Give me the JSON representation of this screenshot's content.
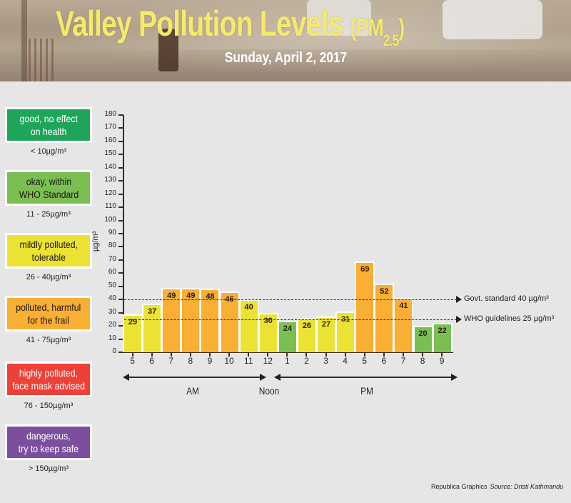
{
  "header": {
    "title": "Valley Pollution Levels",
    "title_pm": "(PM",
    "title_sub": "2.5",
    "title_close": ")",
    "date": "Sunday, April 2, 2017"
  },
  "legend": [
    {
      "label_line1": "good, no effect",
      "label_line2": "on health",
      "range": "< 10µg/m³",
      "color": "#1fa55a",
      "text_color": "#ffffff"
    },
    {
      "label_line1": "okay, within",
      "label_line2": "WHO Standard",
      "range": "11 - 25µg/m³",
      "color": "#7bbf52",
      "text_color": "#1e1a14"
    },
    {
      "label_line1": "mildly polluted,",
      "label_line2": "tolerable",
      "range": "26 - 40µg/m³",
      "color": "#ebe233",
      "text_color": "#1e1a14"
    },
    {
      "label_line1": "polluted, harmful",
      "label_line2": "for the frail",
      "range": "41 - 75µg/m³",
      "color": "#f9ae34",
      "text_color": "#1e1a14"
    },
    {
      "label_line1": "highly polluted,",
      "label_line2": "face mask advised",
      "range": "76 - 150µg/m³",
      "color": "#ef4037",
      "text_color": "#ffffff"
    },
    {
      "label_line1": "dangerous,",
      "label_line2": "try to keep safe",
      "range": "> 150µg/m³",
      "color": "#7b4f9e",
      "text_color": "#ffffff"
    }
  ],
  "reference_lines": [
    {
      "label": "Govt. standard",
      "value_label": "40 µg/m³",
      "value": 40
    },
    {
      "label": "WHO guidelines",
      "value_label": "25 µg/m³",
      "value": 25
    }
  ],
  "periods": {
    "am": "AM",
    "noon": "Noon",
    "pm": "PM"
  },
  "credit": {
    "graphics": "Republica Graphics",
    "source": "Source: Dristi Kathmandu"
  },
  "chart_data": {
    "type": "bar",
    "title": "Valley Pollution Levels (PM2.5)",
    "subtitle": "Sunday, April 2, 2017",
    "xlabel": "",
    "ylabel": "µg/m³",
    "ylim": [
      0,
      180
    ],
    "yticks": [
      0,
      10,
      20,
      30,
      40,
      50,
      60,
      70,
      80,
      90,
      100,
      110,
      120,
      130,
      140,
      150,
      160,
      170,
      180
    ],
    "categories": [
      "5",
      "6",
      "7",
      "8",
      "9",
      "10",
      "11",
      "12",
      "1",
      "2",
      "3",
      "4",
      "5",
      "6",
      "7",
      "8",
      "9"
    ],
    "period": [
      "AM",
      "AM",
      "AM",
      "AM",
      "AM",
      "AM",
      "AM",
      "Noon",
      "PM",
      "PM",
      "PM",
      "PM",
      "PM",
      "PM",
      "PM",
      "PM",
      "PM"
    ],
    "values": [
      29,
      37,
      49,
      49,
      48,
      46,
      40,
      30,
      24,
      26,
      27,
      31,
      69,
      52,
      41,
      20,
      22
    ],
    "bar_colors": [
      "#ebe233",
      "#ebe233",
      "#f9ae34",
      "#f9ae34",
      "#f9ae34",
      "#f9ae34",
      "#ebe233",
      "#ebe233",
      "#7bbf52",
      "#ebe233",
      "#ebe233",
      "#ebe233",
      "#f9ae34",
      "#f9ae34",
      "#f9ae34",
      "#7bbf52",
      "#7bbf52"
    ],
    "annotations": [
      {
        "type": "hline",
        "y": 40,
        "label": "Govt. standard 40 µg/m³"
      },
      {
        "type": "hline",
        "y": 25,
        "label": "WHO guidelines 25 µg/m³"
      }
    ],
    "grid": false,
    "legend_position": "left"
  }
}
